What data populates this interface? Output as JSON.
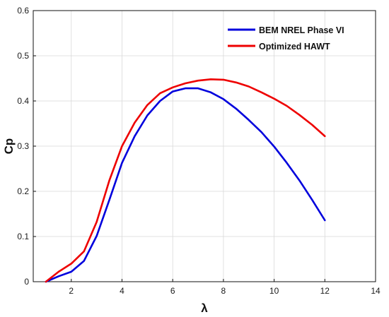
{
  "chart_data": {
    "type": "line",
    "title": "",
    "xlabel": "λ",
    "ylabel": "Cp",
    "xlim": [
      0.5,
      14
    ],
    "ylim": [
      0,
      0.6
    ],
    "xticks": [
      2,
      4,
      6,
      8,
      10,
      12,
      14
    ],
    "yticks": [
      0,
      0.1,
      0.2,
      0.3,
      0.4,
      0.5,
      0.6
    ],
    "grid": true,
    "legend_position": "top-right",
    "series": [
      {
        "name": "BEM NREL Phase VI",
        "color": "#0000dd",
        "x": [
          1,
          1.5,
          2,
          2.5,
          3,
          3.5,
          4,
          4.5,
          5,
          5.5,
          6,
          6.5,
          7,
          7.5,
          8,
          8.5,
          9,
          9.5,
          10,
          10.5,
          11,
          11.5,
          12
        ],
        "y": [
          0.0,
          0.012,
          0.022,
          0.046,
          0.101,
          0.181,
          0.263,
          0.322,
          0.368,
          0.4,
          0.421,
          0.428,
          0.428,
          0.419,
          0.404,
          0.383,
          0.358,
          0.331,
          0.299,
          0.263,
          0.224,
          0.181,
          0.136
        ]
      },
      {
        "name": "Optimized HAWT",
        "color": "#ee0000",
        "x": [
          1,
          1.5,
          2,
          2.5,
          3,
          3.5,
          4,
          4.5,
          5,
          5.5,
          6,
          6.5,
          7,
          7.5,
          8,
          8.5,
          9,
          9.5,
          10,
          10.5,
          11,
          11.5,
          12
        ],
        "y": [
          0.0,
          0.022,
          0.04,
          0.067,
          0.132,
          0.224,
          0.3,
          0.352,
          0.391,
          0.417,
          0.43,
          0.439,
          0.445,
          0.448,
          0.447,
          0.441,
          0.432,
          0.419,
          0.405,
          0.389,
          0.369,
          0.347,
          0.322
        ]
      }
    ]
  }
}
